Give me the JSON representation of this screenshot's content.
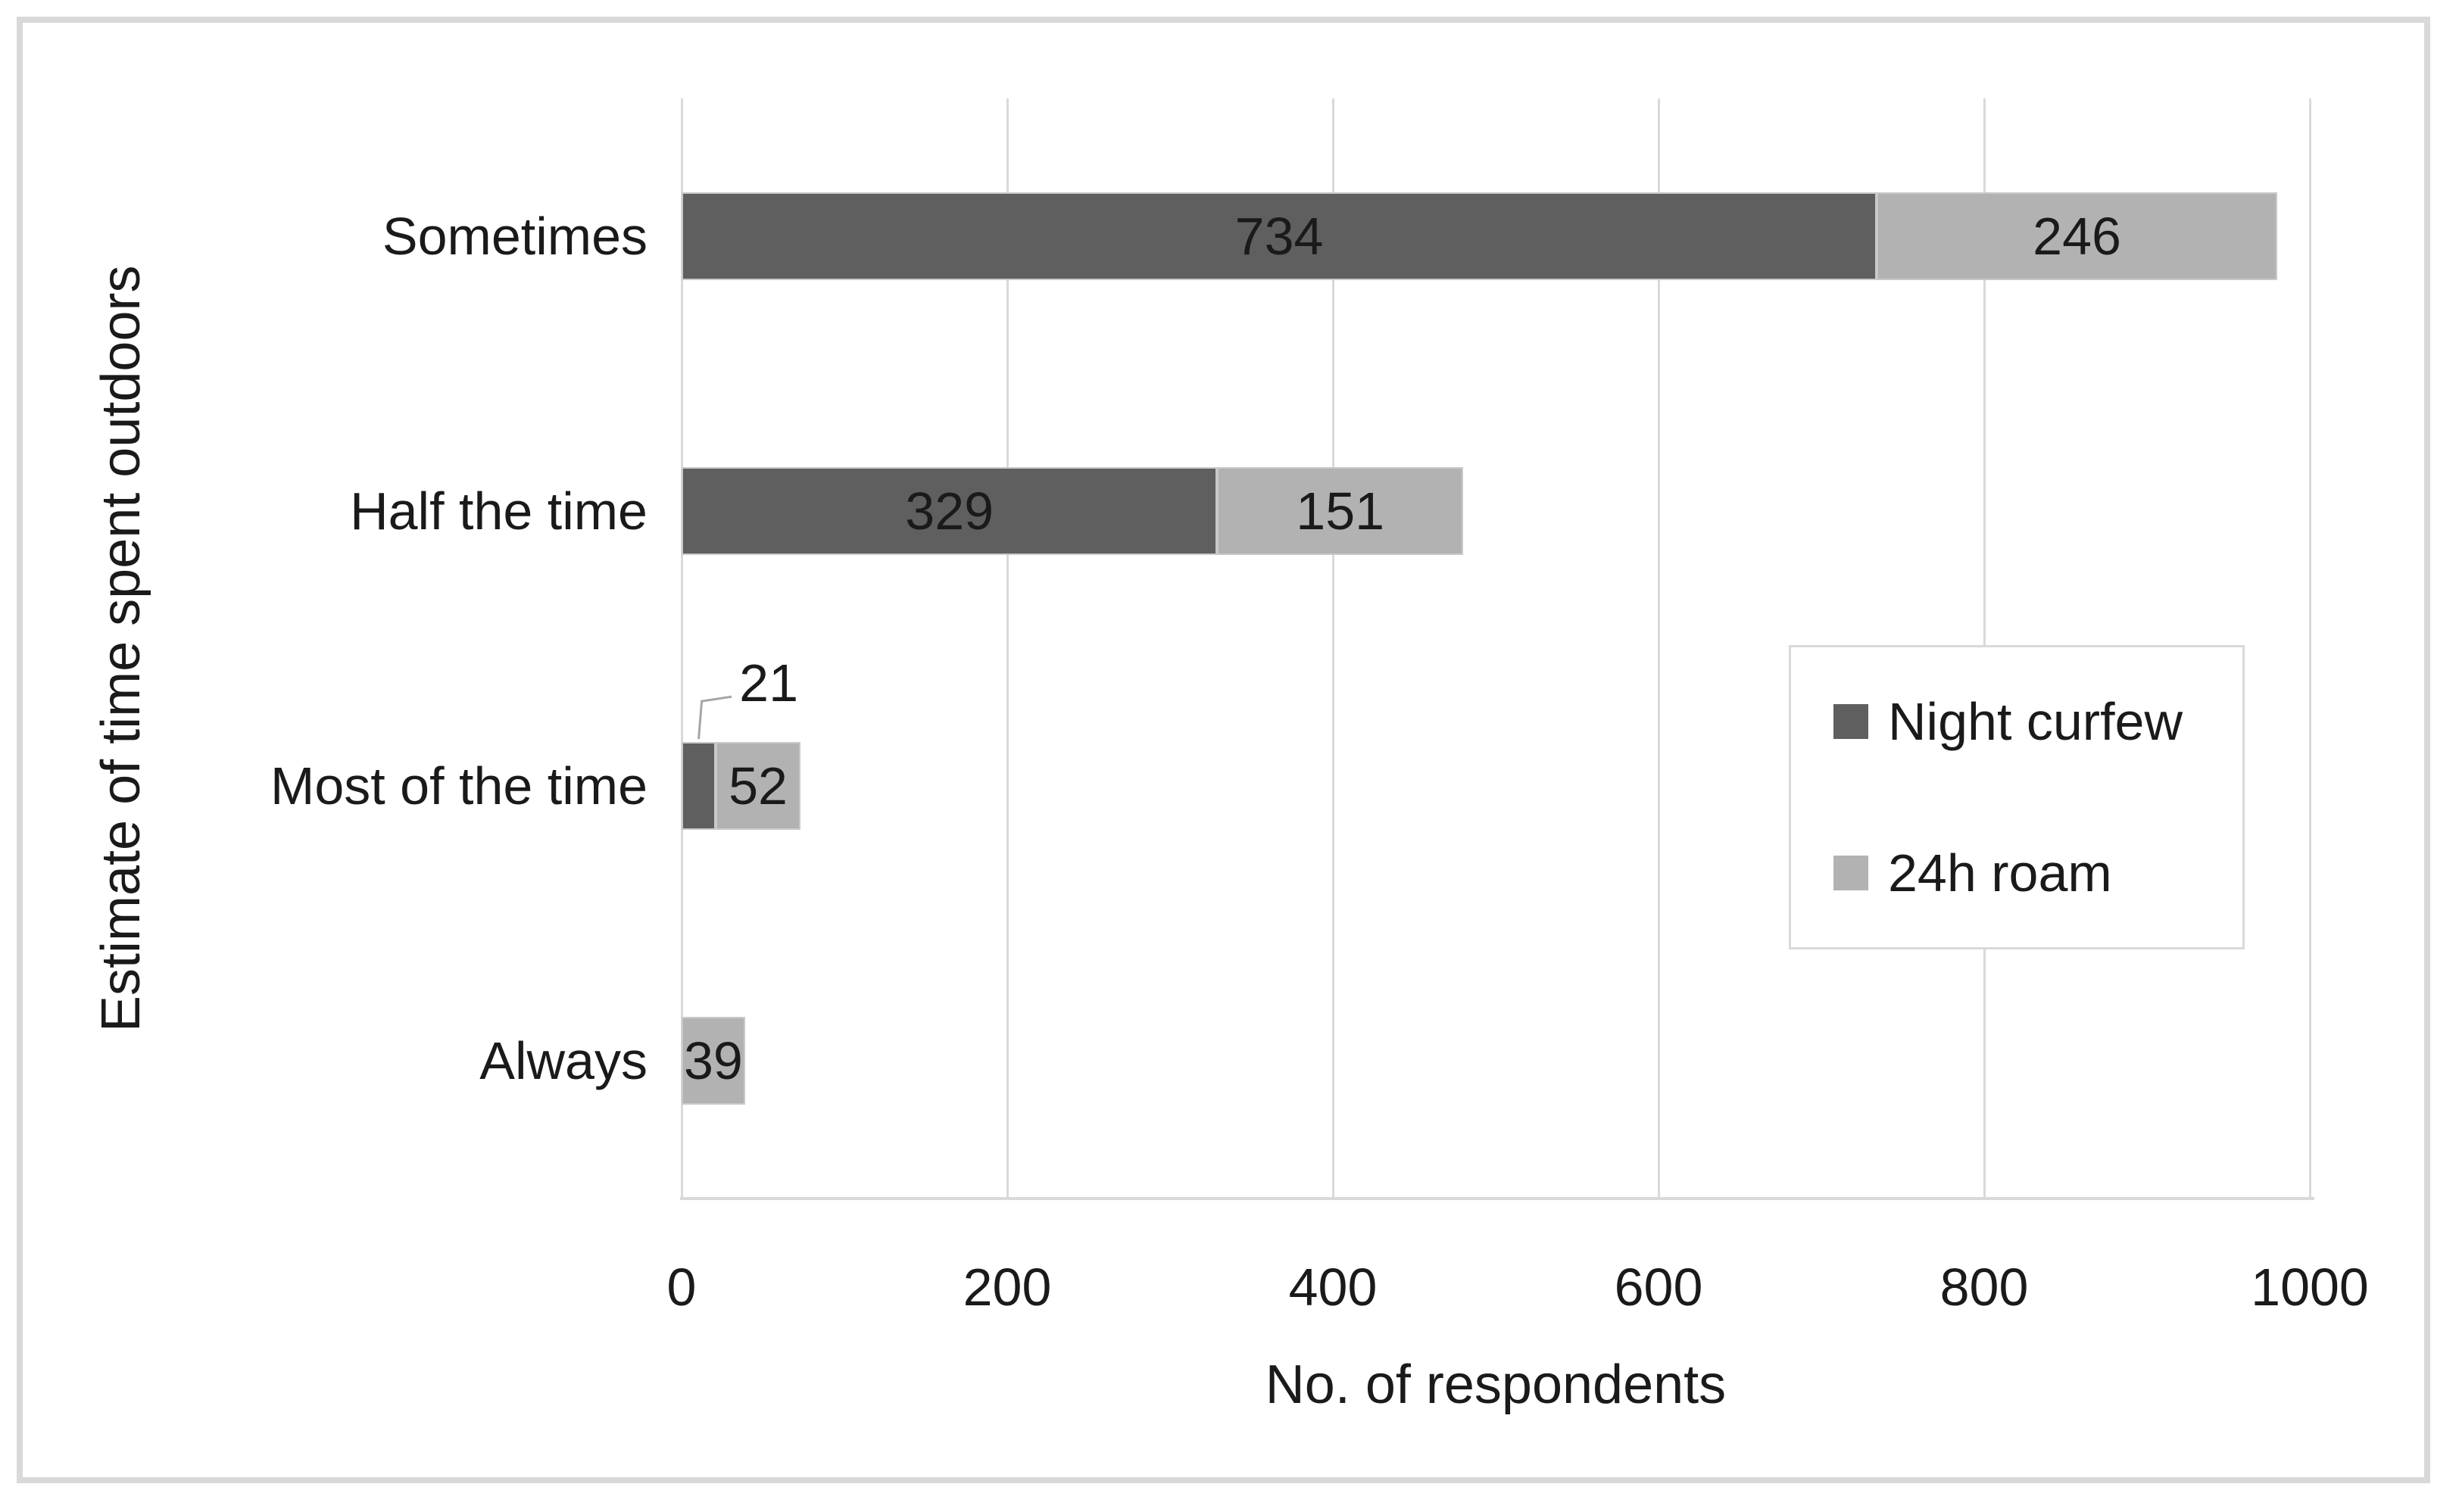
{
  "figure": {
    "background": "#ffffff",
    "frame_border_color": "#d9d9d9",
    "text_color": "#1a1a1a"
  },
  "chart_data": {
    "type": "bar",
    "orientation": "horizontal",
    "stacked": true,
    "title": "",
    "categories": [
      "Sometimes",
      "Half the time",
      "Most of the time",
      "Always"
    ],
    "series": [
      {
        "name": "Night curfew",
        "color": "#5f5f5f",
        "values": [
          734,
          329,
          21,
          0
        ],
        "label_styles": [
          "inside",
          "inside",
          "callout",
          "none"
        ]
      },
      {
        "name": "24h roam",
        "color": "#b2b2b2",
        "values": [
          246,
          151,
          52,
          39
        ],
        "label_styles": [
          "inside",
          "inside",
          "inside",
          "inside"
        ]
      }
    ],
    "xlabel": "No. of respondents",
    "ylabel": "Estimate of time spent outdoors",
    "xlim": [
      0,
      1000
    ],
    "x_ticks": [
      0,
      200,
      400,
      600,
      800,
      1000
    ],
    "grid": "vertical",
    "gridline_color": "#d9d9d9",
    "callout_leader_color": "#a6a6a6",
    "legend": {
      "position": "middle-right",
      "border_color": "#d9d9d9",
      "entries": [
        "Night curfew",
        "24h roam"
      ]
    }
  }
}
